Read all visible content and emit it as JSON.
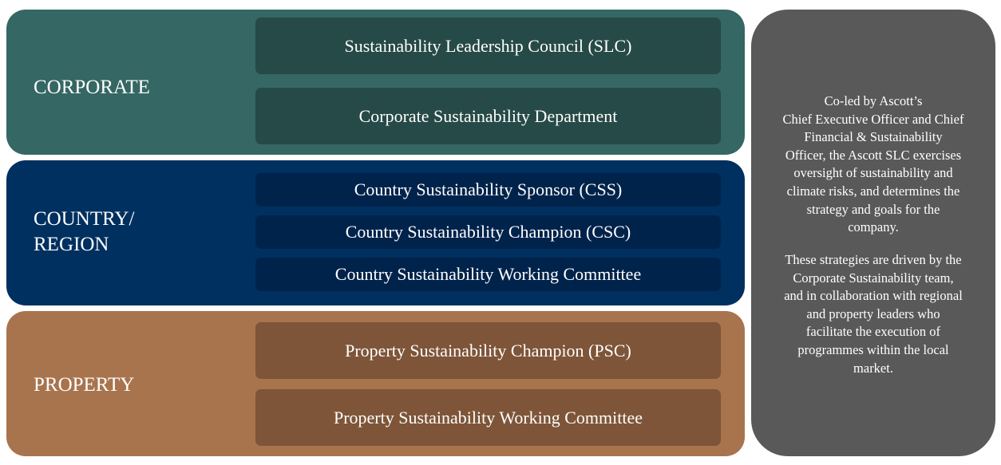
{
  "tiers": [
    {
      "label": "CORPORATE",
      "color": "#356764",
      "items": [
        "Sustainability  Leadership Council (SLC)",
        "Corporate Sustainability  Department"
      ]
    },
    {
      "label_lines": [
        "COUNTRY/",
        "REGION"
      ],
      "color": "#00305f",
      "items": [
        "Country Sustainability  Sponsor (CSS)",
        "Country Sustainability  Champion (CSC)",
        "Country Sustainability  Working  Committee"
      ]
    },
    {
      "label": "PROPERTY",
      "color": "#a8744e",
      "items": [
        "Property Sustainability  Champion (PSC)",
        "Property Sustainability  Working  Committee"
      ]
    }
  ],
  "side_panel": {
    "color": "#595959",
    "paragraph1": [
      "Co-led by Ascott’s",
      "Chief Executive Officer and Chief",
      "Financial  & Sustainability",
      "Officer, the Ascott SLC exercises",
      "oversight of sustainability  and",
      "climate risks, and determines the",
      "strategy and goals for the",
      "company."
    ],
    "paragraph2": [
      "These strategies are driven by the",
      "Corporate Sustainability  team,",
      "and in collaboration with regional",
      "and property leaders who",
      "facilitate  the execution of",
      "programmes within the local",
      "market."
    ]
  }
}
